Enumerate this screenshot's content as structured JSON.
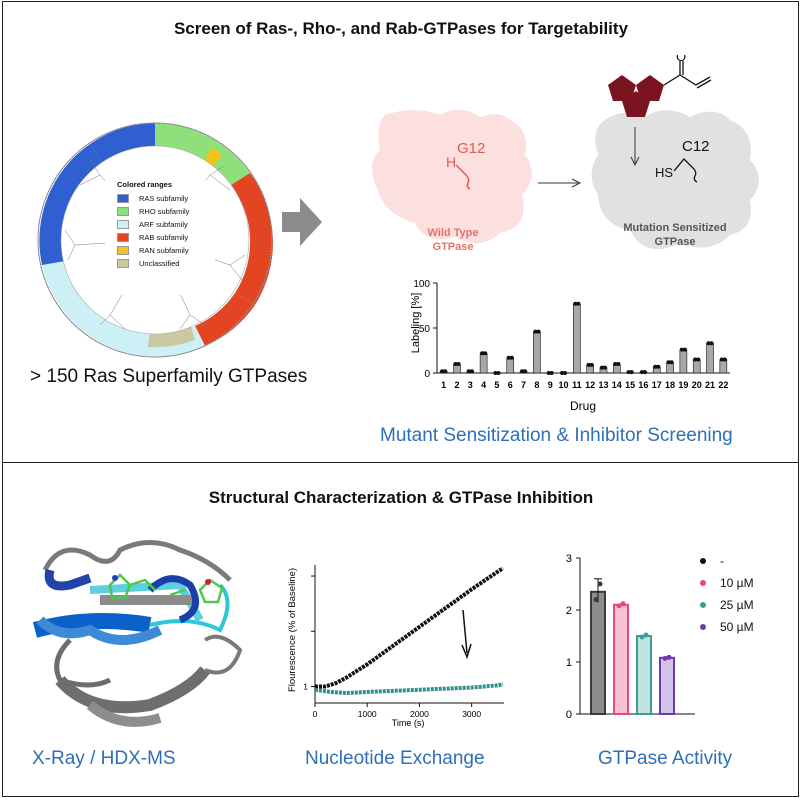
{
  "top_title": "Screen of Ras-, Rho-, and Rab-GTPases for Targetability",
  "bottom_title": "Structural Characterization & GTPase Inhibition",
  "tree": {
    "legend_title": "Colored ranges",
    "legend": [
      {
        "label": "RAS subfamily",
        "color": "#2f5fd0"
      },
      {
        "label": "RHO subfamily",
        "color": "#8fe07a"
      },
      {
        "label": "ARF subfamily",
        "color": "#cdf0f7"
      },
      {
        "label": "RAB subfamily",
        "color": "#e34422"
      },
      {
        "label": "RAN subfamily",
        "color": "#f2c318"
      },
      {
        "label": "Unclassified",
        "color": "#cbc9a2"
      }
    ],
    "caption": "> 150 Ras Superfamily GTPases"
  },
  "scheme": {
    "wt_residue": "G12",
    "wt_atom": "H",
    "wt_label_1": "Wild Type",
    "wt_label_2": "GTPase",
    "mut_residue": "C12",
    "mut_atom": "HS",
    "mut_label_1": "Mutation Sensitized",
    "mut_label_2": "GTPase",
    "ketone_atom": "O"
  },
  "screen_caption": "Mutant Sensitization & Inhibitor Screening",
  "chart_data": [
    {
      "type": "bar",
      "xlabel": "Drug",
      "ylabel": "Labeling [%]",
      "categories": [
        "1",
        "2",
        "3",
        "4",
        "5",
        "6",
        "7",
        "8",
        "9",
        "10",
        "11",
        "12",
        "13",
        "14",
        "15",
        "16",
        "17",
        "18",
        "19",
        "20",
        "21",
        "22"
      ],
      "values": [
        2,
        10,
        2,
        22,
        0,
        17,
        2,
        46,
        0,
        0,
        77,
        9,
        6,
        10,
        1,
        1,
        7,
        12,
        26,
        15,
        33,
        15
      ],
      "ylim": [
        0,
        100
      ],
      "yticks": [
        "0",
        "50",
        "100"
      ],
      "bar_color": "#a8a8a8"
    },
    {
      "type": "line",
      "xlabel": "Time (s)",
      "ylabel": "Flourescence (% of Baseline)",
      "xticks": [
        "0",
        "1000",
        "2000",
        "3000"
      ],
      "ytick_label": "1",
      "series": [
        {
          "color": "#111111",
          "x": [
            0,
            200,
            400,
            600,
            800,
            1000,
            1500,
            2000,
            2500,
            3000,
            3500,
            3600
          ],
          "y": [
            1.0,
            1.0,
            1.03,
            1.08,
            1.14,
            1.2,
            1.37,
            1.54,
            1.71,
            1.88,
            2.04,
            2.07
          ]
        },
        {
          "color": "#2f8f8a",
          "x": [
            0,
            300,
            600,
            1000,
            1500,
            2000,
            2500,
            3000,
            3500,
            3600
          ],
          "y": [
            0.97,
            0.95,
            0.94,
            0.95,
            0.96,
            0.97,
            0.98,
            0.99,
            1.01,
            1.02
          ]
        }
      ]
    },
    {
      "type": "bar",
      "yticks": [
        "0",
        "1",
        "2",
        "3"
      ],
      "ylim": [
        0,
        3
      ],
      "series": [
        {
          "name": "-",
          "value": 2.35,
          "points": [
            2.2,
            2.5
          ],
          "color": "#3a3a3a",
          "fill": "#8c8c8c"
        },
        {
          "name": "10 µM",
          "value": 2.1,
          "points": [
            2.08,
            2.12
          ],
          "color": "#e8477e",
          "fill": "#f6c2d2"
        },
        {
          "name": "25 µM",
          "value": 1.5,
          "points": [
            1.48,
            1.52
          ],
          "color": "#3b9e9a",
          "fill": "#bfe3e1"
        },
        {
          "name": "50 µM",
          "value": 1.08,
          "points": [
            1.07,
            1.09
          ],
          "color": "#6f3aa8",
          "fill": "#d3c2ea"
        }
      ]
    }
  ],
  "captions": {
    "xray": "X-Ray / HDX-MS",
    "exchange": "Nucleotide Exchange",
    "activity": "GTPase Activity"
  }
}
